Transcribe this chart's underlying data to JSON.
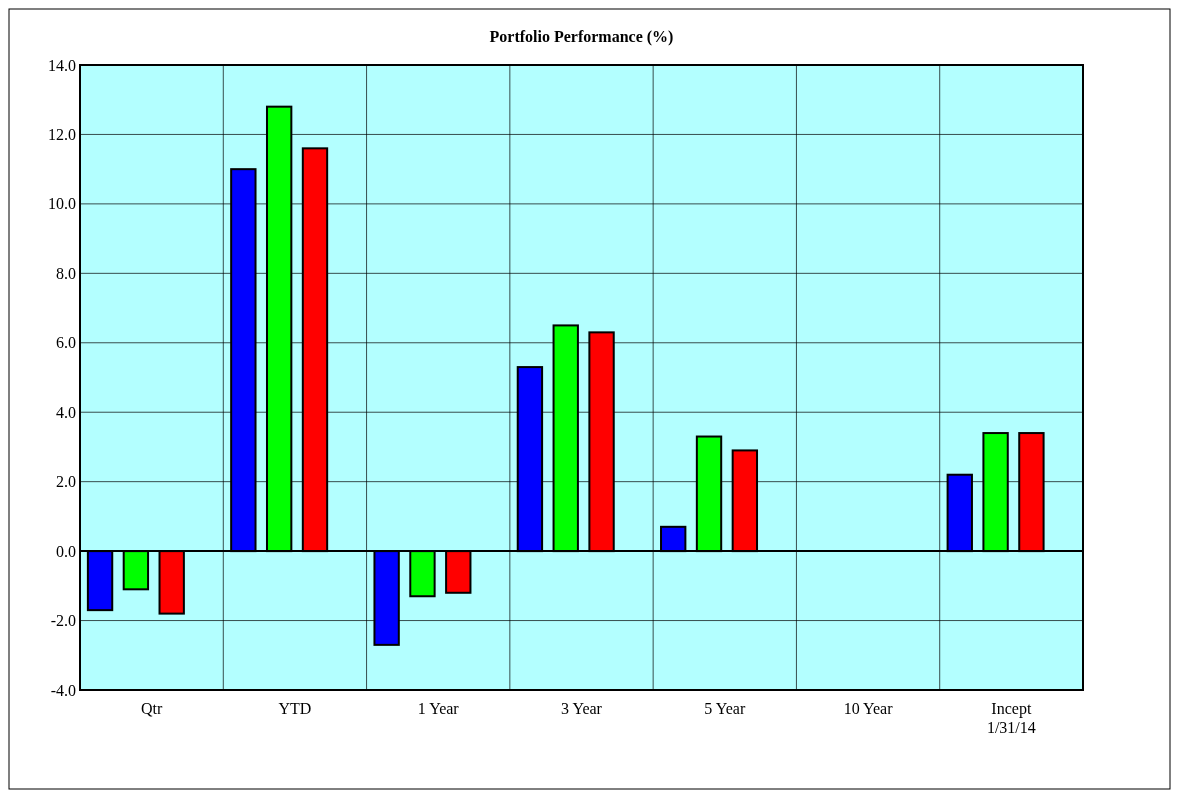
{
  "chart_data": {
    "type": "bar",
    "title": "Portfolio Performance (%)",
    "categories": [
      "Qtr",
      "YTD",
      "1 Year",
      "3 Year",
      "5 Year",
      "10 Year",
      "Incept\n1/31/14"
    ],
    "series": [
      {
        "color": "#0000ff",
        "values": [
          -1.7,
          11.0,
          -2.7,
          5.3,
          0.7,
          null,
          2.2
        ]
      },
      {
        "color": "#00ff00",
        "values": [
          -1.1,
          12.8,
          -1.3,
          6.5,
          3.3,
          null,
          3.4
        ]
      },
      {
        "color": "#ff0000",
        "values": [
          -1.8,
          11.6,
          -1.2,
          6.3,
          2.9,
          null,
          3.4
        ]
      }
    ],
    "ylim": [
      -4,
      14
    ],
    "yticks": [
      {
        "value": -4,
        "label": "-4.0"
      },
      {
        "value": -2,
        "label": "-2.0"
      },
      {
        "value": 0,
        "label": "0.0"
      },
      {
        "value": 2,
        "label": "2.0"
      },
      {
        "value": 4,
        "label": "4.0"
      },
      {
        "value": 6,
        "label": "6.0"
      },
      {
        "value": 8,
        "label": "8.0"
      },
      {
        "value": 10,
        "label": "10.0"
      },
      {
        "value": 12,
        "label": "12.0"
      },
      {
        "value": 14,
        "label": "14.0"
      }
    ],
    "grid": true
  }
}
